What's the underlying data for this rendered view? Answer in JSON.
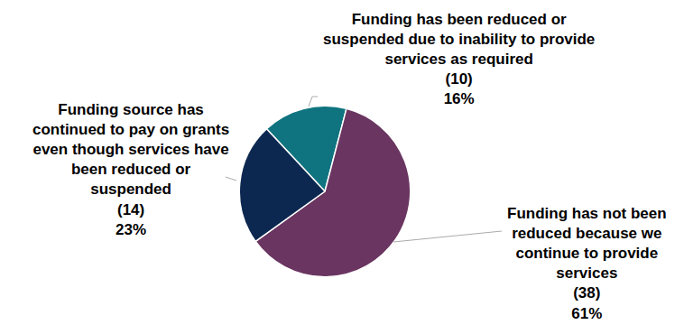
{
  "chart_data": {
    "type": "pie",
    "categories": [
      "Funding has been reduced or\nsuspended due to inability to provide\nservices as required",
      "Funding has not been\nreduced because we\ncontinue to provide\nservices",
      "Funding source has\ncontinued to pay on grants\neven though services have\nbeen reduced or\nsuspended"
    ],
    "values": [
      16,
      61,
      23
    ],
    "value_labels": [
      "16%",
      "61%",
      "23%"
    ],
    "count_labels": [
      "(10)",
      "(38)",
      "(14)"
    ],
    "colors": [
      "#0f7480",
      "#6a3560",
      "#0d2850"
    ],
    "data_labels": true
  }
}
